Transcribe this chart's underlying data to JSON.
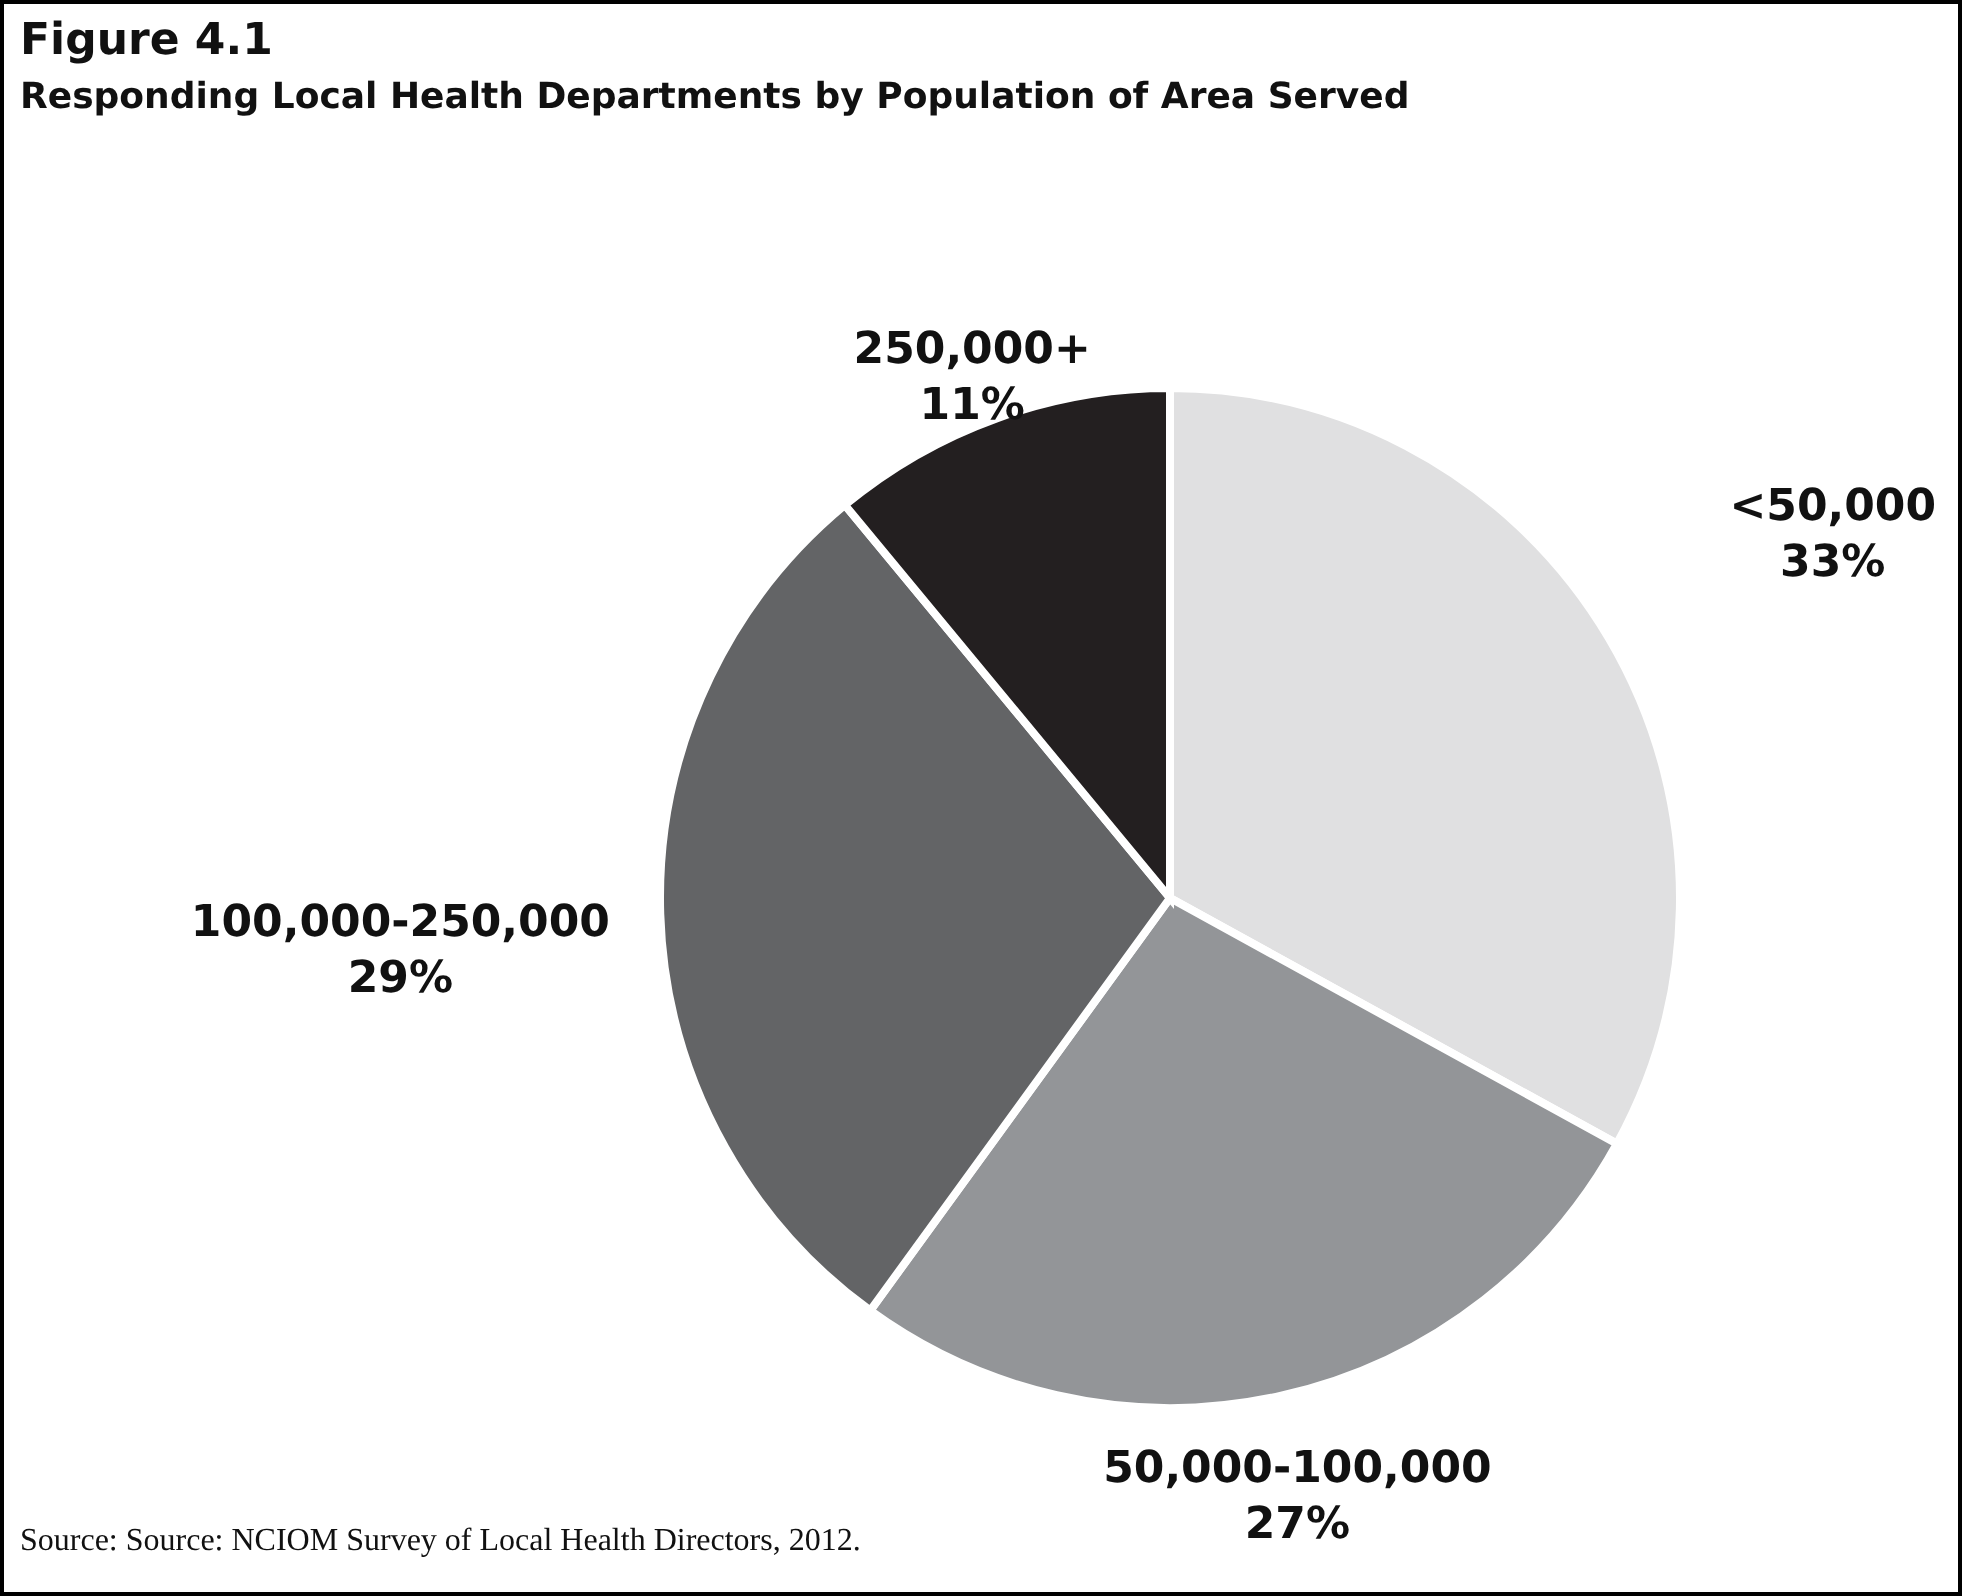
{
  "chart_data": {
    "type": "pie",
    "title": "Figure 4.1",
    "subtitle": "Responding Local Health Departments by Population of Area Served",
    "categories": [
      "<50,000",
      "50,000-100,000",
      "100,000-250,000",
      "250,000+"
    ],
    "values": [
      33,
      27,
      29,
      11
    ],
    "value_labels": [
      "33%",
      "27%",
      "29%",
      "11%"
    ],
    "colors": [
      "#e0e0e1",
      "#939598",
      "#636466",
      "#231f20"
    ],
    "legend": false,
    "annotations": [
      "Source: Source: NCIOM Survey of Local Health Directors, 2012."
    ]
  }
}
